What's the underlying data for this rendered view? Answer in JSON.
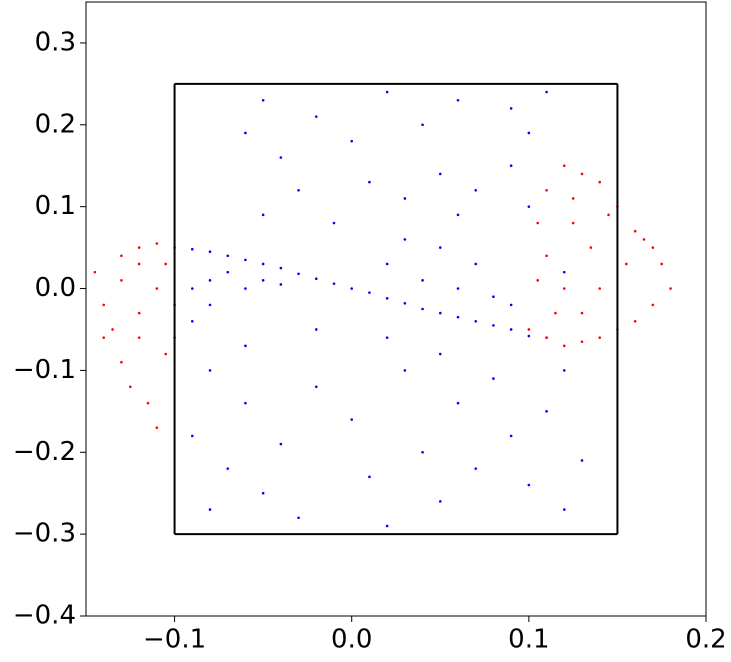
{
  "chart_data": {
    "type": "scatter",
    "xlim": [
      -0.15,
      0.2
    ],
    "ylim": [
      -0.4,
      0.35
    ],
    "xticks": [
      {
        "value": -0.1,
        "label": "−0.1"
      },
      {
        "value": 0.0,
        "label": "0.0"
      },
      {
        "value": 0.1,
        "label": "0.1"
      },
      {
        "value": 0.2,
        "label": "0.2"
      }
    ],
    "yticks": [
      {
        "value": -0.4,
        "label": "−0.4"
      },
      {
        "value": -0.3,
        "label": "−0.3"
      },
      {
        "value": -0.2,
        "label": "−0.2"
      },
      {
        "value": -0.1,
        "label": "−0.1"
      },
      {
        "value": 0.0,
        "label": "0.0"
      },
      {
        "value": 0.1,
        "label": "0.1"
      },
      {
        "value": 0.2,
        "label": "0.2"
      },
      {
        "value": 0.3,
        "label": "0.3"
      }
    ],
    "rectangle": {
      "x": [
        -0.1,
        0.15
      ],
      "y": [
        -0.3,
        0.25
      ],
      "color": "#000000"
    },
    "series": [
      {
        "color": "#0000ff",
        "x": [
          -0.1,
          -0.09,
          -0.08,
          -0.07,
          -0.06,
          -0.05,
          -0.04,
          -0.03,
          -0.02,
          -0.01,
          0,
          0.01,
          0.02,
          0.03,
          0.04,
          0.05,
          0.06,
          0.07,
          0.08,
          0.09,
          0.1,
          -0.1,
          -0.09,
          -0.08,
          -0.07,
          -0.1,
          -0.09,
          -0.08,
          -0.06,
          -0.05,
          -0.04,
          0.02,
          0.04,
          0.06,
          0.08,
          0.05,
          0.03,
          0.07,
          0.09,
          -0.06,
          -0.05,
          -0.04,
          -0.02,
          0.0,
          0.02,
          0.04,
          0.06,
          0.09,
          0.1,
          0.11,
          -0.03,
          0.01,
          0.03,
          0.05,
          0.07,
          0.09,
          -0.05,
          -0.01,
          0.06,
          0.1,
          -0.08,
          -0.06,
          -0.09,
          -0.07,
          -0.05,
          -0.04,
          -0.03,
          -0.02,
          0.0,
          0.01,
          0.02,
          0.03,
          0.04,
          0.05,
          0.06,
          0.07,
          0.08,
          0.09,
          0.1,
          0.11,
          0.12,
          0.12,
          -0.06,
          -0.02,
          0.02,
          0.05,
          -0.08,
          0.13,
          0.11,
          0.12
        ],
        "values": [
          0.05,
          0.048,
          0.045,
          0.04,
          0.035,
          0.03,
          0.025,
          0.018,
          0.012,
          0.006,
          0,
          -0.005,
          -0.012,
          -0.018,
          -0.025,
          -0.03,
          -0.035,
          -0.04,
          -0.045,
          -0.05,
          -0.058,
          -0.02,
          0.0,
          0.01,
          0.02,
          -0.06,
          -0.04,
          -0.02,
          0.0,
          0.01,
          0.005,
          0.03,
          0.01,
          0.0,
          -0.01,
          0.05,
          0.06,
          0.03,
          -0.02,
          0.19,
          0.23,
          0.16,
          0.21,
          0.18,
          0.24,
          0.2,
          0.23,
          0.22,
          0.19,
          0.24,
          0.12,
          0.13,
          0.11,
          0.14,
          0.12,
          0.15,
          0.09,
          0.08,
          0.09,
          0.1,
          -0.1,
          -0.14,
          -0.18,
          -0.22,
          -0.25,
          -0.19,
          -0.28,
          -0.12,
          -0.16,
          -0.23,
          -0.29,
          -0.1,
          -0.2,
          -0.26,
          -0.14,
          -0.22,
          -0.11,
          -0.18,
          -0.24,
          -0.15,
          -0.27,
          -0.1,
          -0.07,
          -0.05,
          -0.06,
          -0.08,
          -0.27,
          -0.21,
          -0.06,
          0.02
        ]
      },
      {
        "color": "#ff0000",
        "x": [
          -0.14,
          -0.145,
          -0.13,
          -0.12,
          -0.11,
          -0.135,
          -0.13,
          -0.125,
          -0.115,
          -0.11,
          -0.12,
          -0.11,
          -0.12,
          -0.105,
          -0.13,
          -0.14,
          -0.12,
          -0.105,
          0.1,
          0.11,
          0.12,
          0.13,
          0.14,
          0.15,
          0.16,
          0.17,
          0.18,
          0.175,
          0.165,
          0.15,
          0.14,
          0.13,
          0.12,
          0.11,
          0.105,
          0.11,
          0.12,
          0.13,
          0.125,
          0.135,
          0.14,
          0.145,
          0.155,
          0.16,
          0.115,
          0.105,
          0.125,
          0.17
        ],
        "values": [
          -0.02,
          0.02,
          0.04,
          0.05,
          0.055,
          -0.05,
          -0.09,
          -0.12,
          -0.14,
          -0.17,
          -0.03,
          0.0,
          0.03,
          -0.08,
          0.01,
          -0.06,
          -0.06,
          0.03,
          -0.05,
          -0.06,
          -0.07,
          -0.065,
          -0.06,
          -0.05,
          -0.04,
          -0.02,
          0.0,
          0.03,
          0.06,
          0.1,
          0.13,
          0.14,
          0.15,
          0.12,
          0.08,
          0.04,
          0.0,
          -0.03,
          0.08,
          0.05,
          0.0,
          0.09,
          0.03,
          0.07,
          -0.03,
          0.01,
          0.11,
          0.05
        ]
      }
    ]
  }
}
